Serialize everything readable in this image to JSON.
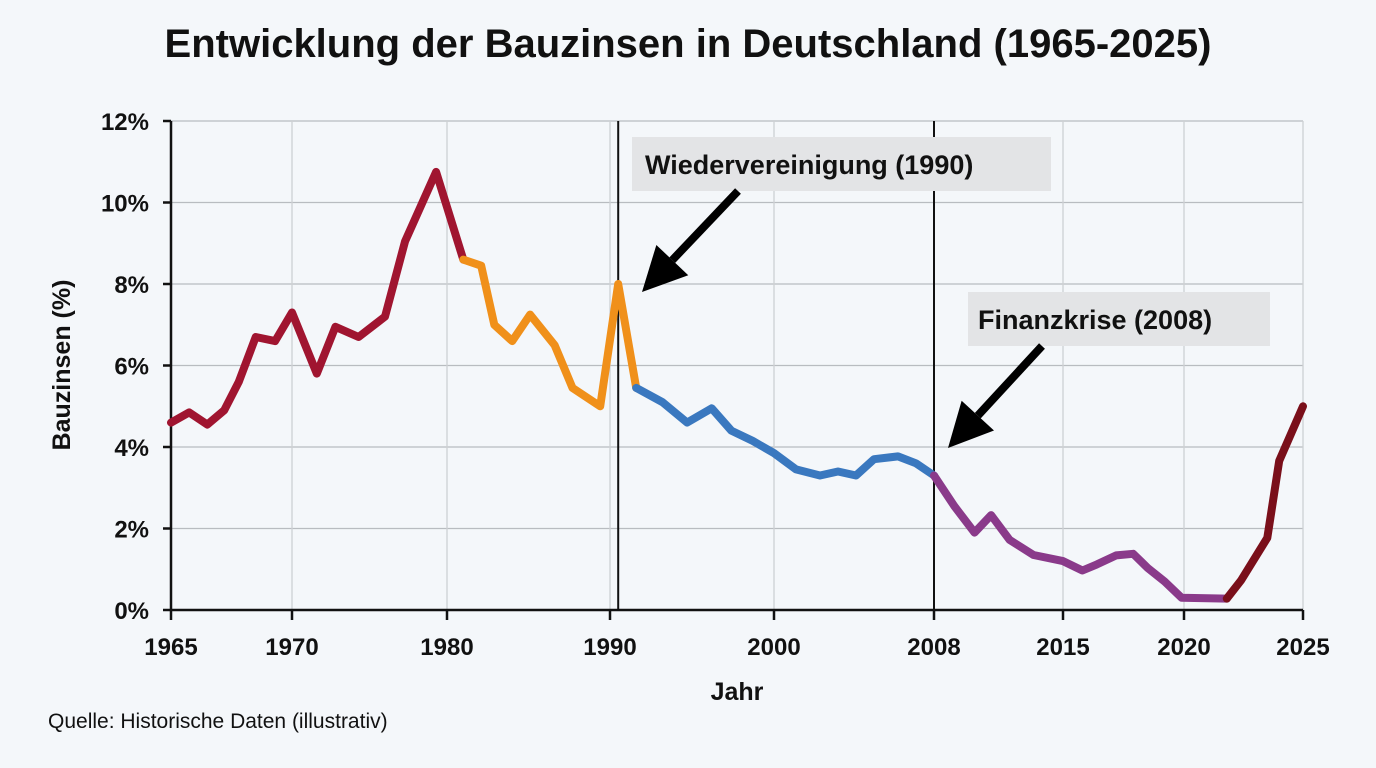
{
  "chart_data": {
    "type": "line",
    "title": "Entwicklung der Bauzinsen in Deutschland (1965-2025)",
    "xlabel": "Jahr",
    "ylabel": "Bauzinsen (%)",
    "source": "Quelle: Historische Daten (illustrativ)",
    "xticks": [
      1965,
      1970,
      1980,
      1990,
      2000,
      2008,
      2015,
      2020,
      2025
    ],
    "yticks": [
      0,
      2,
      4,
      6,
      8,
      10,
      12
    ],
    "ytick_labels": [
      "0%",
      "2%",
      "4%",
      "6%",
      "8%",
      "10%",
      "12%"
    ],
    "ylim": [
      0,
      12
    ],
    "xlim": [
      1965,
      2025
    ],
    "grid": true,
    "segments": [
      {
        "color": "#a01530",
        "points": [
          [
            1965,
            4.6
          ],
          [
            1965.75,
            4.85
          ],
          [
            1966.5,
            4.55
          ],
          [
            1967.2,
            4.9
          ],
          [
            1967.8,
            5.6
          ],
          [
            1968.5,
            6.7
          ],
          [
            1969.3,
            6.6
          ],
          [
            1970,
            7.3
          ],
          [
            1971.6,
            5.8
          ],
          [
            1972.8,
            6.95
          ],
          [
            1974.3,
            6.7
          ],
          [
            1976,
            7.2
          ],
          [
            1977.3,
            9.05
          ],
          [
            1979.3,
            10.75
          ],
          [
            1981,
            8.6
          ]
        ]
      },
      {
        "color": "#f0901a",
        "points": [
          [
            1981,
            8.6
          ],
          [
            1982.1,
            8.45
          ],
          [
            1982.9,
            7.0
          ],
          [
            1984,
            6.6
          ],
          [
            1985.1,
            7.25
          ],
          [
            1986.6,
            6.5
          ],
          [
            1987.7,
            5.45
          ],
          [
            1989.4,
            5.0
          ],
          [
            1990.5,
            8.0
          ],
          [
            1991.6,
            5.45
          ]
        ]
      },
      {
        "color": "#3a78bf",
        "points": [
          [
            1991.6,
            5.45
          ],
          [
            1993.2,
            5.1
          ],
          [
            1994.7,
            4.6
          ],
          [
            1996.2,
            4.95
          ],
          [
            1997.4,
            4.4
          ],
          [
            1998.7,
            4.15
          ],
          [
            2000,
            3.85
          ],
          [
            2001.1,
            3.45
          ],
          [
            2002.3,
            3.3
          ],
          [
            2003.2,
            3.4
          ],
          [
            2004.1,
            3.3
          ],
          [
            2005,
            3.7
          ],
          [
            2006.2,
            3.77
          ],
          [
            2007.1,
            3.6
          ],
          [
            2008,
            3.3
          ]
        ]
      },
      {
        "color": "#8a3a8a",
        "points": [
          [
            2008,
            3.3
          ],
          [
            2009.1,
            2.55
          ],
          [
            2010.2,
            1.9
          ],
          [
            2011.1,
            2.33
          ],
          [
            2012.1,
            1.72
          ],
          [
            2013.4,
            1.35
          ],
          [
            2015,
            1.2
          ],
          [
            2015.8,
            0.97
          ],
          [
            2016.4,
            1.12
          ],
          [
            2017.2,
            1.34
          ],
          [
            2017.9,
            1.38
          ],
          [
            2018.5,
            1.03
          ],
          [
            2019.2,
            0.7
          ],
          [
            2019.9,
            0.3
          ],
          [
            2021.8,
            0.28
          ]
        ]
      },
      {
        "color": "#7a0f1a",
        "points": [
          [
            2021.8,
            0.28
          ],
          [
            2022.4,
            0.73
          ],
          [
            2023.5,
            1.77
          ],
          [
            2024,
            3.66
          ],
          [
            2025,
            5.0
          ]
        ]
      }
    ],
    "annotations": [
      {
        "label": "Wiedervereinigung (1990)",
        "year": 1990.5
      },
      {
        "label": "Finanzkrise (2008)",
        "year": 2008
      }
    ]
  }
}
